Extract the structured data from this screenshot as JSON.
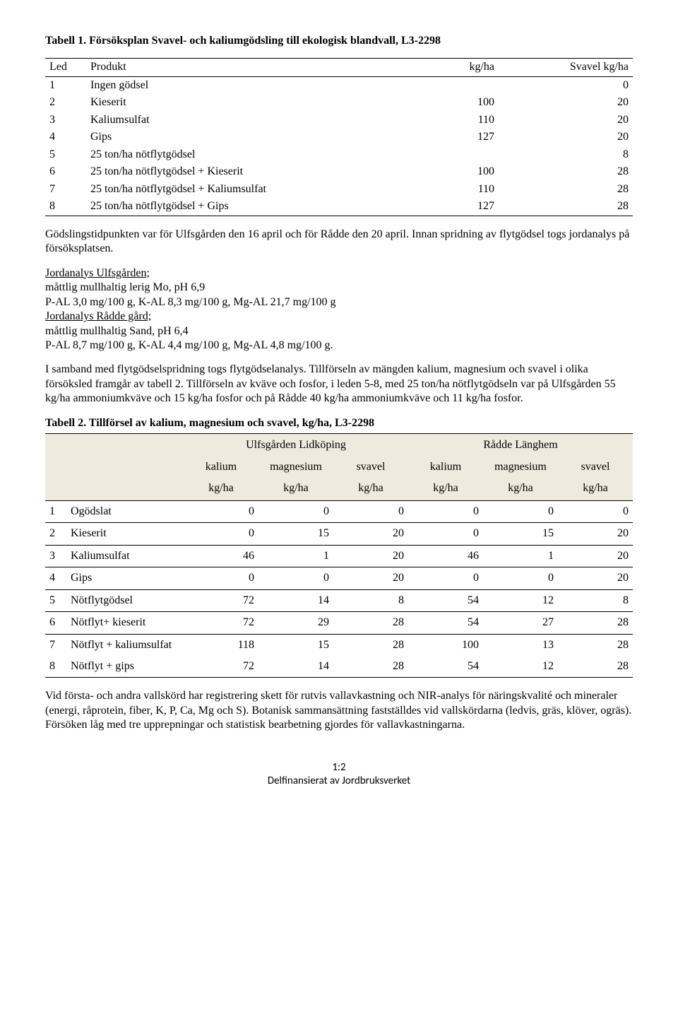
{
  "t1": {
    "caption": "Tabell 1. Försöksplan Svavel- och kaliumgödsling till ekologisk blandvall, L3-2298",
    "headers": [
      "Led",
      "Produkt",
      "kg/ha",
      "Svavel kg/ha"
    ],
    "rows": [
      [
        "1",
        "Ingen gödsel",
        "",
        "0"
      ],
      [
        "2",
        "Kieserit",
        "100",
        "20"
      ],
      [
        "3",
        "Kaliumsulfat",
        "110",
        "20"
      ],
      [
        "4",
        "Gips",
        "127",
        "20"
      ],
      [
        "5",
        "25 ton/ha nötflytgödsel",
        "",
        "8"
      ],
      [
        "6",
        "25 ton/ha nötflytgödsel + Kieserit",
        "100",
        "28"
      ],
      [
        "7",
        "25 ton/ha nötflytgödsel + Kaliumsulfat",
        "110",
        "28"
      ],
      [
        "8",
        "25 ton/ha nötflytgödsel + Gips",
        "127",
        "28"
      ]
    ]
  },
  "para1": "Gödslingstidpunkten var för Ulfsgården den 16 april och för Rådde den 20 april. Innan spridning av flytgödsel togs jordanalys på försöksplatsen.",
  "soil": {
    "h1": "Jordanalys Ulfsgården;",
    "l1": "måttlig mullhaltig lerig Mo, pH 6,9",
    "l2": "P-AL 3,0 mg/100 g, K-AL 8,3 mg/100 g, Mg-AL 21,7 mg/100 g",
    "h2": "Jordanalys Rådde gård;",
    "l3": "måttlig mullhaltig Sand, pH 6,4",
    "l4": "P-AL 8,7 mg/100 g, K-AL 4,4 mg/100 g, Mg-AL 4,8 mg/100 g."
  },
  "para2": "I samband med flytgödselspridning togs flytgödselanalys. Tillförseln av mängden kalium, magnesium och svavel i olika försöksled framgår av tabell 2. Tillförseln av kväve och fosfor, i leden 5-8, med 25 ton/ha nötflytgödseln var på Ulfsgården 55 kg/ha ammoniumkväve och 15 kg/ha fosfor och på Rådde 40 kg/ha ammoniumkväve och 11 kg/ha fosfor.",
  "t2": {
    "caption": "Tabell 2. Tillförsel av kalium, magnesium och svavel, kg/ha, L3-2298",
    "group1": "Ulfsgården Lidköping",
    "group2": "Rådde Länghem",
    "cols": [
      "kalium",
      "magnesium",
      "svavel",
      "kalium",
      "magnesium",
      "svavel"
    ],
    "unit": "kg/ha",
    "rows": [
      {
        "n": "1",
        "lab": "Ogödslat",
        "v": [
          "0",
          "0",
          "0",
          "0",
          "0",
          "0"
        ],
        "nb": false
      },
      {
        "n": "2",
        "lab": "Kieserit",
        "v": [
          "0",
          "15",
          "20",
          "0",
          "15",
          "20"
        ],
        "nb": false
      },
      {
        "n": "3",
        "lab": "Kaliumsulfat",
        "v": [
          "46",
          "1",
          "20",
          "46",
          "1",
          "20"
        ],
        "nb": false
      },
      {
        "n": "4",
        "lab": "Gips",
        "v": [
          "0",
          "0",
          "20",
          "0",
          "0",
          "20"
        ],
        "nb": false
      },
      {
        "n": "5",
        "lab": "Nötflytgödsel",
        "v": [
          "72",
          "14",
          "8",
          "54",
          "12",
          "8"
        ],
        "nb": false
      },
      {
        "n": "6",
        "lab": "Nötflyt+ kieserit",
        "v": [
          "72",
          "29",
          "28",
          "54",
          "27",
          "28"
        ],
        "nb": false
      },
      {
        "n": "7",
        "lab": "Nötflyt + kaliumsulfat",
        "v": [
          "118",
          "15",
          "28",
          "100",
          "13",
          "28"
        ],
        "nb": true
      },
      {
        "n": "8",
        "lab": "Nötflyt + gips",
        "v": [
          "72",
          "14",
          "28",
          "54",
          "12",
          "28"
        ],
        "nb": false
      }
    ]
  },
  "para3": "Vid första- och andra vallskörd har registrering skett för rutvis vallavkastning och NIR-analys för näringskvalité och mineraler (energi, råprotein, fiber, K, P, Ca, Mg och S). Botanisk sammansättning fastställdes vid vallskördarna (ledvis, gräs, klöver, ogräs). Försöken låg med tre upprepningar och statistisk bearbetning gjordes för vallavkastningarna.",
  "footer": {
    "page": "1:2",
    "note": "Delfinansierat av Jordbruksverket"
  }
}
